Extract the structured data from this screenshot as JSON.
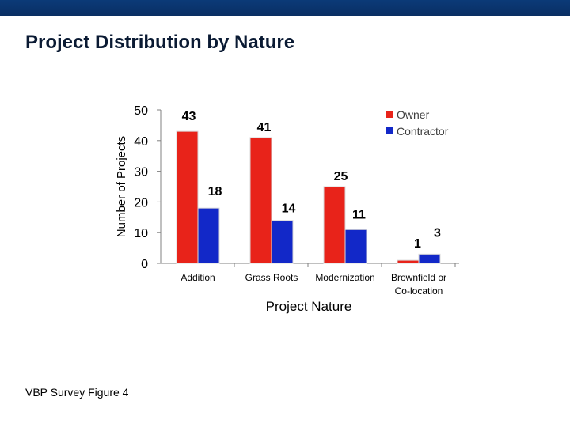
{
  "slide": {
    "title": "Project Distribution by Nature",
    "footer": "VBP Survey Figure 4"
  },
  "colors": {
    "top_bar": "#0b3a78",
    "owner": "#e8231a",
    "contractor": "#1228c8"
  },
  "chart_data": {
    "type": "bar",
    "xlabel": "Project Nature",
    "ylabel": "Number of Projects",
    "ylim": [
      0,
      50
    ],
    "yticks": [
      0,
      10,
      20,
      30,
      40,
      50
    ],
    "grid": false,
    "legend_position": "top-right",
    "categories": [
      [
        "Addition"
      ],
      [
        "Grass Roots"
      ],
      [
        "Modernization"
      ],
      [
        "Brownfield or",
        "Co-location"
      ]
    ],
    "series": [
      {
        "name": "Owner",
        "color": "#e8231a",
        "values": [
          43,
          41,
          25,
          1
        ]
      },
      {
        "name": "Contractor",
        "color": "#1228c8",
        "values": [
          18,
          14,
          11,
          3
        ]
      }
    ]
  }
}
